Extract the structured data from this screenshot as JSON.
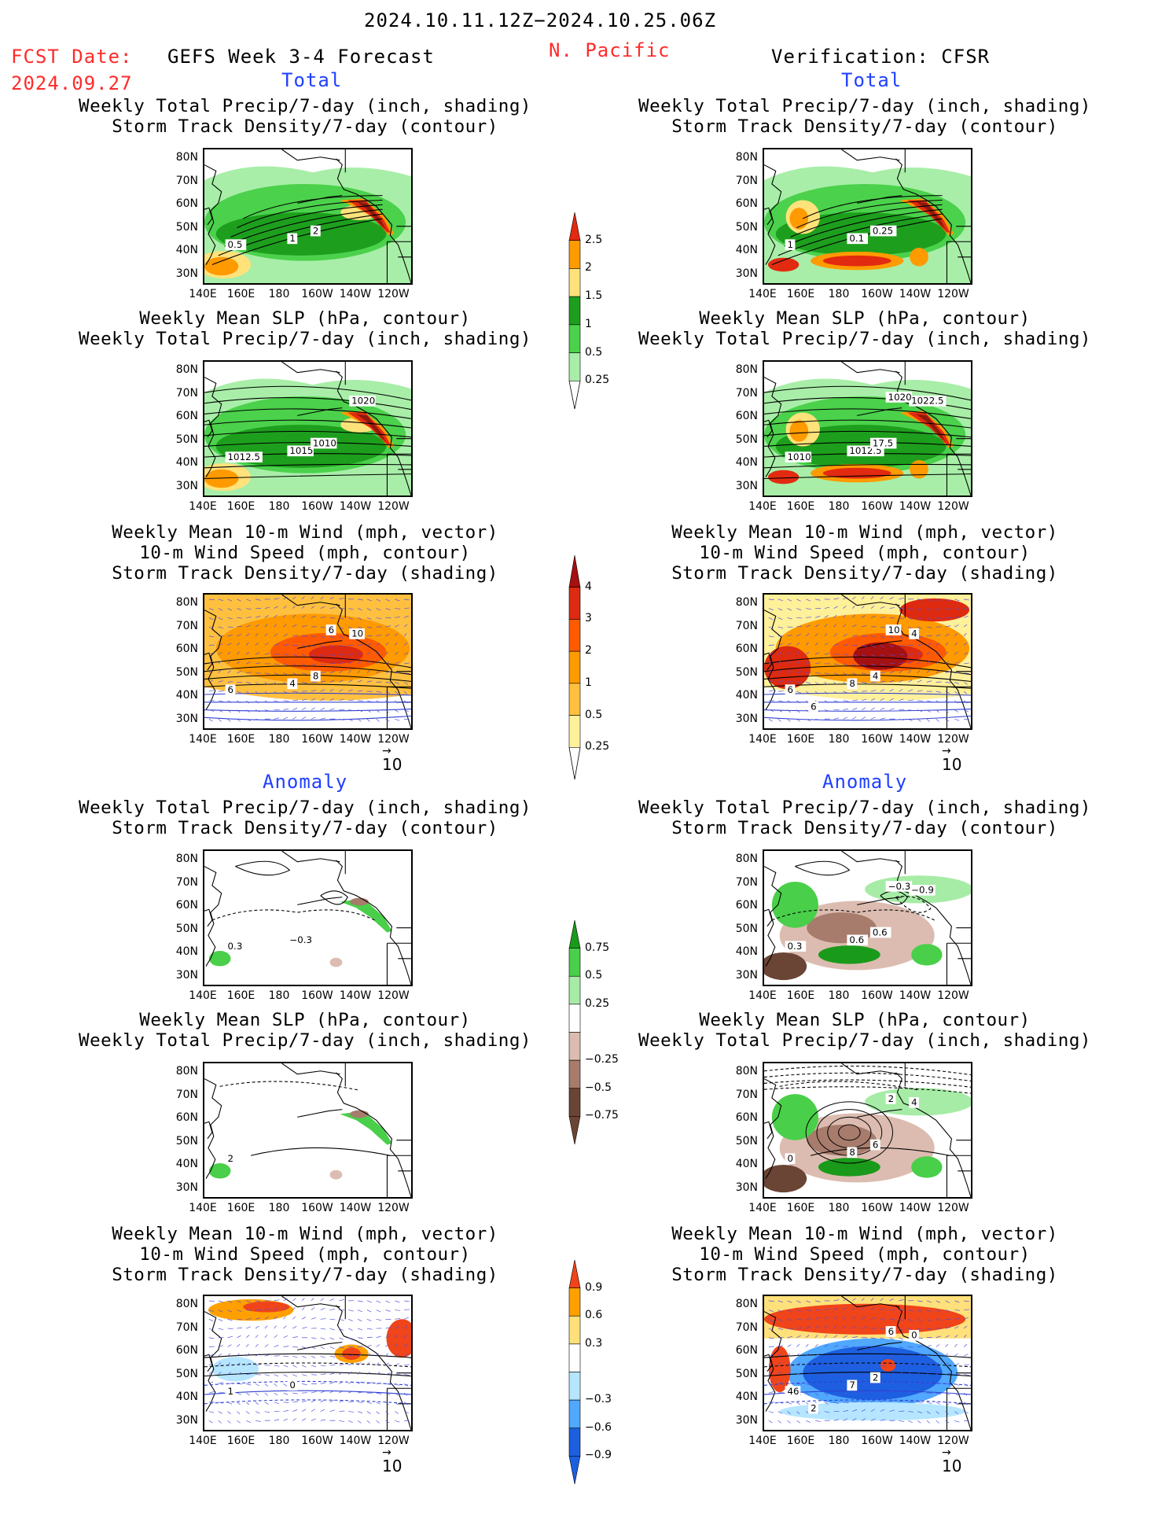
{
  "header": {
    "date_range": "2024.10.11.12Z−2024.10.25.06Z",
    "fcst_label": "FCST Date:",
    "fcst_date": "2024.09.27",
    "forecast_title": "GEFS Week 3-4 Forecast",
    "region": "N. Pacific",
    "verification": "Verification: CFSR",
    "section_total": "Total",
    "section_anomaly": "Anomaly"
  },
  "titles": {
    "precip_storm": [
      "Weekly Total Precip/7-day (inch, shading)",
      "Storm Track Density/7-day (contour)"
    ],
    "slp_precip": [
      "Weekly Mean SLP (hPa, contour)",
      "Weekly Total Precip/7-day (inch, shading)"
    ],
    "wind": [
      "Weekly Mean 10-m Wind (mph, vector)",
      "10-m Wind Speed (mph, contour)",
      "Storm Track Density/7-day (shading)"
    ]
  },
  "axes": {
    "lat": [
      "80N",
      "70N",
      "60N",
      "50N",
      "40N",
      "30N"
    ],
    "lon": [
      "140E",
      "160E",
      "180",
      "160W",
      "140W",
      "120W"
    ]
  },
  "vector_ref": "10",
  "colorbars": {
    "precip_total": {
      "labels": [
        "2.5",
        "2",
        "1.5",
        "1",
        "0.5",
        "0.25"
      ],
      "colors": [
        "#e22a10",
        "#ff9a00",
        "#ffe27a",
        "#1d9f1d",
        "#4bd14b",
        "#a8eea8"
      ]
    },
    "storm_total": {
      "labels": [
        "4",
        "3",
        "2",
        "1",
        "0.5",
        "0.25"
      ],
      "colors": [
        "#a51010",
        "#dd2a10",
        "#ff5a00",
        "#ff9a00",
        "#ffc040",
        "#fff09a"
      ]
    },
    "precip_anom": {
      "labels": [
        "0.75",
        "0.5",
        "0.25",
        "−0.25",
        "−0.5",
        "−0.75"
      ],
      "colors": [
        "#1a9a1a",
        "#49cf49",
        "#a6eca6",
        "#ffffff",
        "#dcbcb0",
        "#a77c6c",
        "#6a4434"
      ]
    },
    "storm_anom": {
      "labels": [
        "0.9",
        "0.6",
        "0.3",
        "−0.3",
        "−0.6",
        "−0.9"
      ],
      "colors": [
        "#f0441a",
        "#ffa000",
        "#ffe07a",
        "#ffffff",
        "#b6e6ff",
        "#50a8ff",
        "#1c5fe0"
      ]
    }
  },
  "panels": {
    "fcst_total_precip": {
      "contour_labels": [
        "0.5",
        "1",
        "2"
      ]
    },
    "obs_total_precip": {
      "contour_labels": [
        "1",
        "0.1",
        "0.25"
      ]
    },
    "fcst_total_slp": {
      "contour_labels": [
        "1012.5",
        "1015",
        "1010",
        "1020"
      ]
    },
    "obs_total_slp": {
      "contour_labels": [
        "1010",
        "1012.5",
        "17.5",
        "1022.5",
        "1020"
      ]
    },
    "fcst_total_wind": {
      "contour_labels": [
        "6",
        "4",
        "8",
        "10",
        "6"
      ]
    },
    "obs_total_wind": {
      "contour_labels": [
        "6",
        "8",
        "4",
        "4",
        "10",
        "6"
      ]
    },
    "fcst_anom_precip": {
      "contour_labels": [
        "0.3",
        "−0.3"
      ]
    },
    "obs_anom_precip": {
      "contour_labels": [
        "0.3",
        "0.6",
        "0.6",
        "−0.9",
        "−0.3"
      ]
    },
    "fcst_anom_slp": {
      "contour_labels": [
        "2"
      ]
    },
    "obs_anom_slp": {
      "contour_labels": [
        "0",
        "8",
        "6",
        "4",
        "2"
      ]
    },
    "fcst_anom_wind": {
      "contour_labels": [
        "1",
        "0"
      ]
    },
    "obs_anom_wind": {
      "contour_labels": [
        "46",
        "7",
        "2",
        "0",
        "6",
        "2"
      ]
    }
  }
}
